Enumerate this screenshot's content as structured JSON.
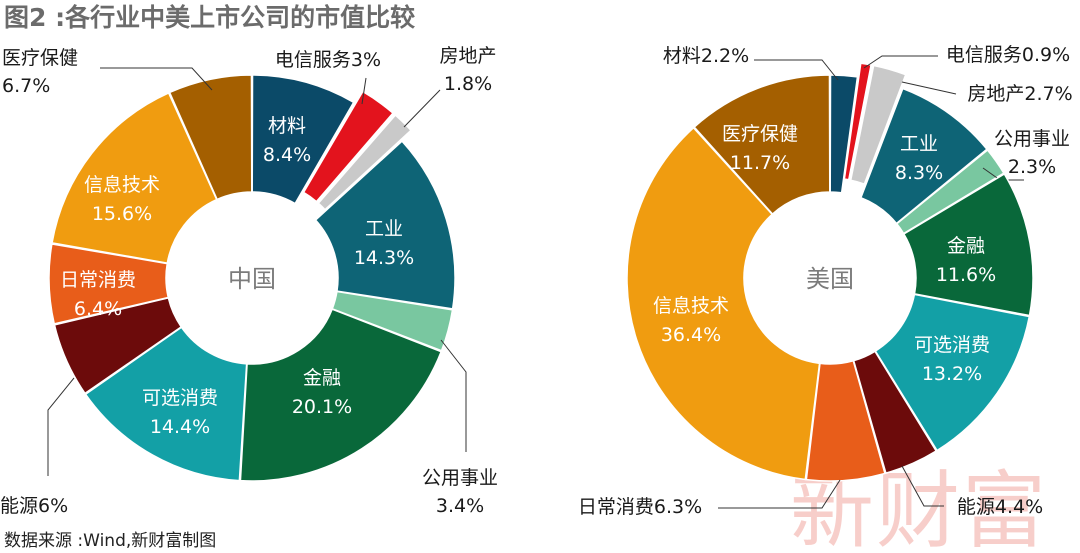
{
  "title": "图2 :各行业中美上市公司的市值比较",
  "source": "数据来源 :Wind,新财富制图",
  "watermark": "新财富",
  "chart_data": [
    {
      "type": "pie",
      "variant": "donut",
      "center_label": "中国",
      "slices": [
        {
          "name": "材料",
          "value": 8.4,
          "label": "8.4%",
          "color": "#0b4a68"
        },
        {
          "name": "电信服务",
          "value": 3.0,
          "label": "3%",
          "color": "#e3131d",
          "exploded": true
        },
        {
          "name": "房地产",
          "value": 1.8,
          "label": "1.8%",
          "color": "#c9c9c9",
          "exploded": true
        },
        {
          "name": "工业",
          "value": 14.3,
          "label": "14.3%",
          "color": "#0e6476"
        },
        {
          "name": "公用事业",
          "value": 3.4,
          "label": "3.4%",
          "color": "#79c7a0"
        },
        {
          "name": "金融",
          "value": 20.1,
          "label": "20.1%",
          "color": "#09683a"
        },
        {
          "name": "可选消费",
          "value": 14.4,
          "label": "14.4%",
          "color": "#13a0a6"
        },
        {
          "name": "能源",
          "value": 6.0,
          "label": "6%",
          "color": "#6c0b0b"
        },
        {
          "name": "日常消费",
          "value": 6.4,
          "label": "6.4%",
          "color": "#e85d1a"
        },
        {
          "name": "信息技术",
          "value": 15.6,
          "label": "15.6%",
          "color": "#f09c10"
        },
        {
          "name": "医疗保健",
          "value": 6.7,
          "label": "6.7%",
          "color": "#a45f00"
        }
      ]
    },
    {
      "type": "pie",
      "variant": "donut",
      "center_label": "美国",
      "slices": [
        {
          "name": "材料",
          "value": 2.2,
          "label": "2.2%",
          "color": "#0b4a68"
        },
        {
          "name": "电信服务",
          "value": 0.9,
          "label": "0.9%",
          "color": "#e3131d",
          "exploded": true
        },
        {
          "name": "房地产",
          "value": 2.7,
          "label": "2.7%",
          "color": "#c9c9c9",
          "exploded": true
        },
        {
          "name": "工业",
          "value": 8.3,
          "label": "8.3%",
          "color": "#0e6476"
        },
        {
          "name": "公用事业",
          "value": 2.3,
          "label": "2.3%",
          "color": "#79c7a0"
        },
        {
          "name": "金融",
          "value": 11.6,
          "label": "11.6%",
          "color": "#09683a"
        },
        {
          "name": "可选消费",
          "value": 13.2,
          "label": "13.2%",
          "color": "#13a0a6"
        },
        {
          "name": "能源",
          "value": 4.4,
          "label": "4.4%",
          "color": "#6c0b0b"
        },
        {
          "name": "日常消费",
          "value": 6.3,
          "label": "6.3%",
          "color": "#e85d1a"
        },
        {
          "name": "信息技术",
          "value": 36.4,
          "label": "36.4%",
          "color": "#f09c10"
        },
        {
          "name": "医疗保健",
          "value": 11.7,
          "label": "11.7%",
          "color": "#a45f00"
        }
      ]
    }
  ]
}
